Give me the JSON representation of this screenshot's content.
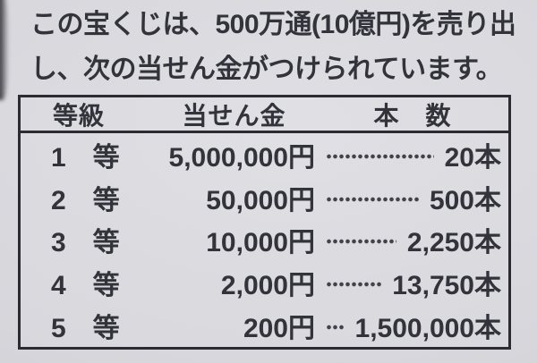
{
  "intro": {
    "line1": "この宝くじは、500万通(10億円)を売り出",
    "line2": "し、次の当せん金がつけられています。"
  },
  "table": {
    "headers": {
      "rank": "等級",
      "prize": "当せん金",
      "count": "本　数"
    },
    "rows": [
      {
        "rank": "1　等",
        "prize": "5,000,000円",
        "count": "20本"
      },
      {
        "rank": "2　等",
        "prize": "50,000円",
        "count": "500本"
      },
      {
        "rank": "3　等",
        "prize": "10,000円",
        "count": "2,250本"
      },
      {
        "rank": "4　等",
        "prize": "2,000円",
        "count": "13,750本"
      },
      {
        "rank": "5　等",
        "prize": "200円",
        "count": "1,500,000本"
      }
    ]
  },
  "colors": {
    "paper": "#d5d5d9",
    "ink": "#33333b",
    "table_border": "#2b2b31",
    "leader_dots": "#42424a"
  }
}
